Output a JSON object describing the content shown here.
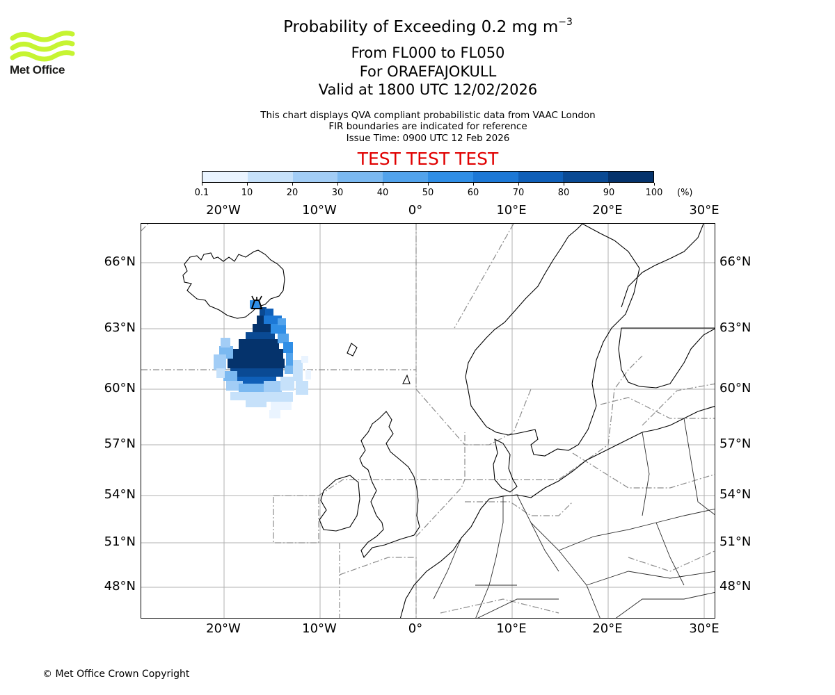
{
  "branding": {
    "logo_icon": "met-office-wave-logo",
    "logo_text": "Met Office",
    "logo_color": "#c6f432"
  },
  "header": {
    "title_prefix": "Probability of Exceeding 0.2 mg m",
    "title_exponent": "−3",
    "level_range": "From FL000 to FL050",
    "volcano": "For ORAEFAJOKULL",
    "valid_time": "Valid at 1800 UTC 12/02/2026",
    "note_line1": "This chart displays QVA compliant probabilistic data from VAAC London",
    "note_line2": "FIR boundaries are indicated for reference",
    "issue_time": "Issue Time: 0900 UTC 12 Feb 2026",
    "test_banner": "TEST TEST TEST",
    "test_color": "#e00000"
  },
  "colorbar": {
    "ticks": [
      "0.1",
      "10",
      "20",
      "30",
      "40",
      "50",
      "60",
      "70",
      "80",
      "90",
      "100"
    ],
    "unit": "(%)",
    "colors": [
      "#eaf4ff",
      "#c6e1fa",
      "#a2cdf6",
      "#7bb9f1",
      "#52a3ec",
      "#2f8ee6",
      "#1c78d6",
      "#0f5fb8",
      "#0a4a94",
      "#05336c"
    ]
  },
  "map": {
    "lon_labels_top": [
      "20°W",
      "10°W",
      "0°",
      "10°E",
      "20°E",
      "30°E"
    ],
    "lon_labels_bottom": [
      "20°W",
      "10°W",
      "0°",
      "10°E",
      "20°E",
      "30°E"
    ],
    "lat_labels_left": [
      "66°N",
      "63°N",
      "60°N",
      "57°N",
      "54°N",
      "51°N",
      "48°N"
    ],
    "lat_labels_right": [
      "66°N",
      "63°N",
      "60°N",
      "57°N",
      "54°N",
      "51°N",
      "48°N"
    ],
    "volcano_icon": "volcano-marker-icon",
    "ash_plume_icon": "ash-probability-plume"
  },
  "footer": {
    "copyright": "© Met Office Crown Copyright"
  }
}
